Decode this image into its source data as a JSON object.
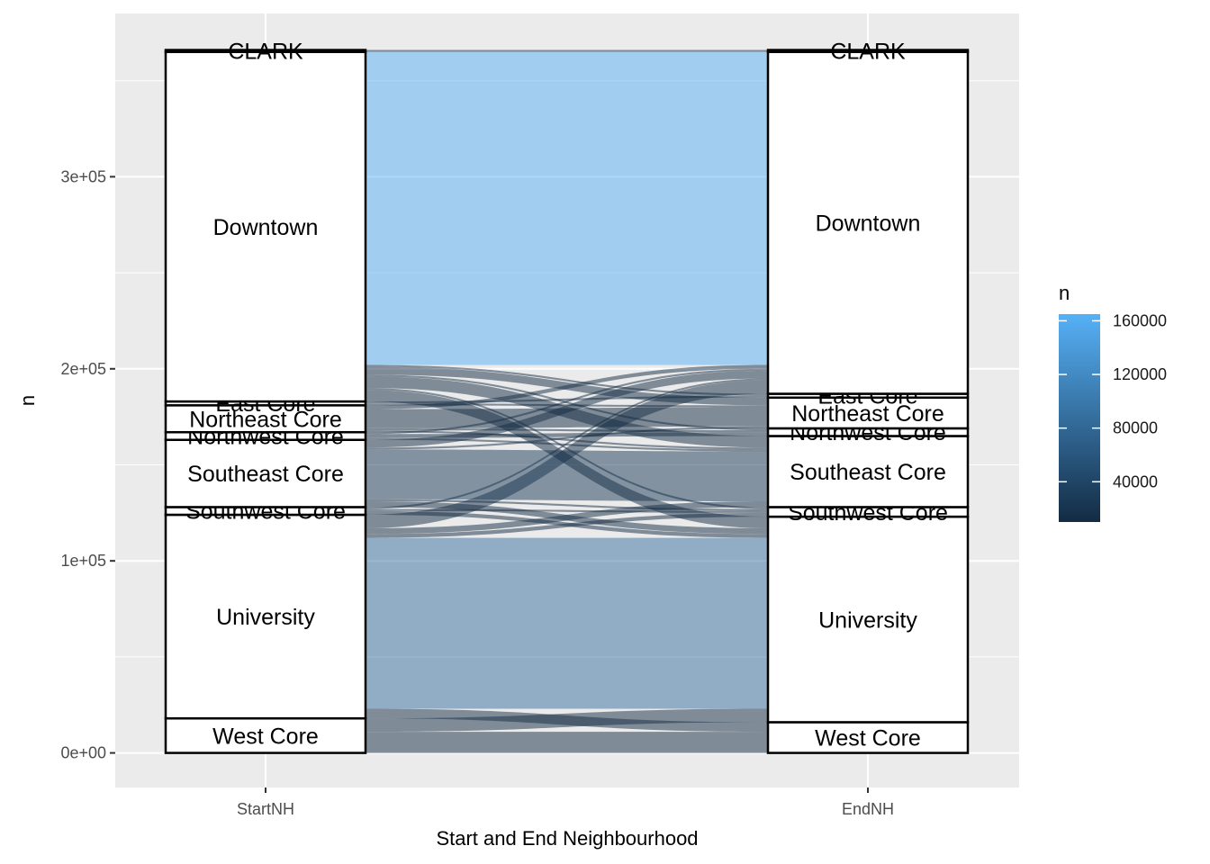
{
  "chart_data": {
    "type": "alluvial",
    "title": "",
    "xlabel": "Start and End Neighbourhood",
    "ylabel": "n",
    "axes": [
      "StartNH",
      "EndNH"
    ],
    "ylim": [
      -18000,
      385000
    ],
    "yticks": [
      0,
      100000,
      200000,
      300000
    ],
    "ytick_labels": [
      "0e+00",
      "1e+05",
      "2e+05",
      "3e+05"
    ],
    "grid": true,
    "legend_position": "right",
    "legend": {
      "title": "n",
      "min": 10000,
      "max": 165000,
      "color_low": "#132b43",
      "color_high": "#56b1f7",
      "breaks": [
        160000,
        120000,
        80000,
        40000
      ],
      "break_labels": [
        "160000",
        "120000",
        "80000",
        "40000"
      ]
    },
    "strata": {
      "StartNH": [
        {
          "name": "West Core",
          "value": 18000
        },
        {
          "name": "University",
          "value": 106000
        },
        {
          "name": "Southwest Core",
          "value": 4000
        },
        {
          "name": "Southeast Core",
          "value": 35000
        },
        {
          "name": "Northwest Core",
          "value": 4000
        },
        {
          "name": "Northeast Core",
          "value": 14000
        },
        {
          "name": "East Core",
          "value": 2000
        },
        {
          "name": "Downtown",
          "value": 182000
        },
        {
          "name": "CLARK",
          "value": 1000
        }
      ],
      "EndNH": [
        {
          "name": "West Core",
          "value": 16000
        },
        {
          "name": "University",
          "value": 107000
        },
        {
          "name": "Southwest Core",
          "value": 5000
        },
        {
          "name": "Southeast Core",
          "value": 37000
        },
        {
          "name": "Northwest Core",
          "value": 4000
        },
        {
          "name": "Northeast Core",
          "value": 16000
        },
        {
          "name": "East Core",
          "value": 2000
        },
        {
          "name": "Downtown",
          "value": 178000
        },
        {
          "name": "CLARK",
          "value": 1000
        }
      ]
    },
    "flows": [
      {
        "from": "West Core",
        "to": "West Core",
        "value": 11000
      },
      {
        "from": "West Core",
        "to": "University",
        "value": 7000
      },
      {
        "from": "University",
        "to": "West Core",
        "value": 5000
      },
      {
        "from": "University",
        "to": "University",
        "value": 89000
      },
      {
        "from": "University",
        "to": "Southwest Core",
        "value": 2000
      },
      {
        "from": "University",
        "to": "Southeast Core",
        "value": 3000
      },
      {
        "from": "University",
        "to": "Downtown",
        "value": 7000
      },
      {
        "from": "Southwest Core",
        "to": "University",
        "value": 2000
      },
      {
        "from": "Southwest Core",
        "to": "Southwest Core",
        "value": 1000
      },
      {
        "from": "Southwest Core",
        "to": "Downtown",
        "value": 1000
      },
      {
        "from": "Southeast Core",
        "to": "University",
        "value": 3000
      },
      {
        "from": "Southeast Core",
        "to": "Southwest Core",
        "value": 1000
      },
      {
        "from": "Southeast Core",
        "to": "Southeast Core",
        "value": 26000
      },
      {
        "from": "Southeast Core",
        "to": "Northeast Core",
        "value": 1000
      },
      {
        "from": "Southeast Core",
        "to": "Downtown",
        "value": 4000
      },
      {
        "from": "Northwest Core",
        "to": "Southeast Core",
        "value": 1000
      },
      {
        "from": "Northwest Core",
        "to": "Northwest Core",
        "value": 2000
      },
      {
        "from": "Northwest Core",
        "to": "Downtown",
        "value": 1000
      },
      {
        "from": "Northeast Core",
        "to": "Southeast Core",
        "value": 1000
      },
      {
        "from": "Northeast Core",
        "to": "Northwest Core",
        "value": 1000
      },
      {
        "from": "Northeast Core",
        "to": "Northeast Core",
        "value": 10000
      },
      {
        "from": "Northeast Core",
        "to": "Downtown",
        "value": 2000
      },
      {
        "from": "East Core",
        "to": "Northeast Core",
        "value": 1000
      },
      {
        "from": "East Core",
        "to": "East Core",
        "value": 1000
      },
      {
        "from": "Downtown",
        "to": "University",
        "value": 6000
      },
      {
        "from": "Downtown",
        "to": "Southwest Core",
        "value": 1000
      },
      {
        "from": "Downtown",
        "to": "Southeast Core",
        "value": 6000
      },
      {
        "from": "Downtown",
        "to": "Northwest Core",
        "value": 1000
      },
      {
        "from": "Downtown",
        "to": "Northeast Core",
        "value": 4000
      },
      {
        "from": "Downtown",
        "to": "East Core",
        "value": 1000
      },
      {
        "from": "Downtown",
        "to": "Downtown",
        "value": 163000
      },
      {
        "from": "CLARK",
        "to": "CLARK",
        "value": 1000
      }
    ]
  }
}
